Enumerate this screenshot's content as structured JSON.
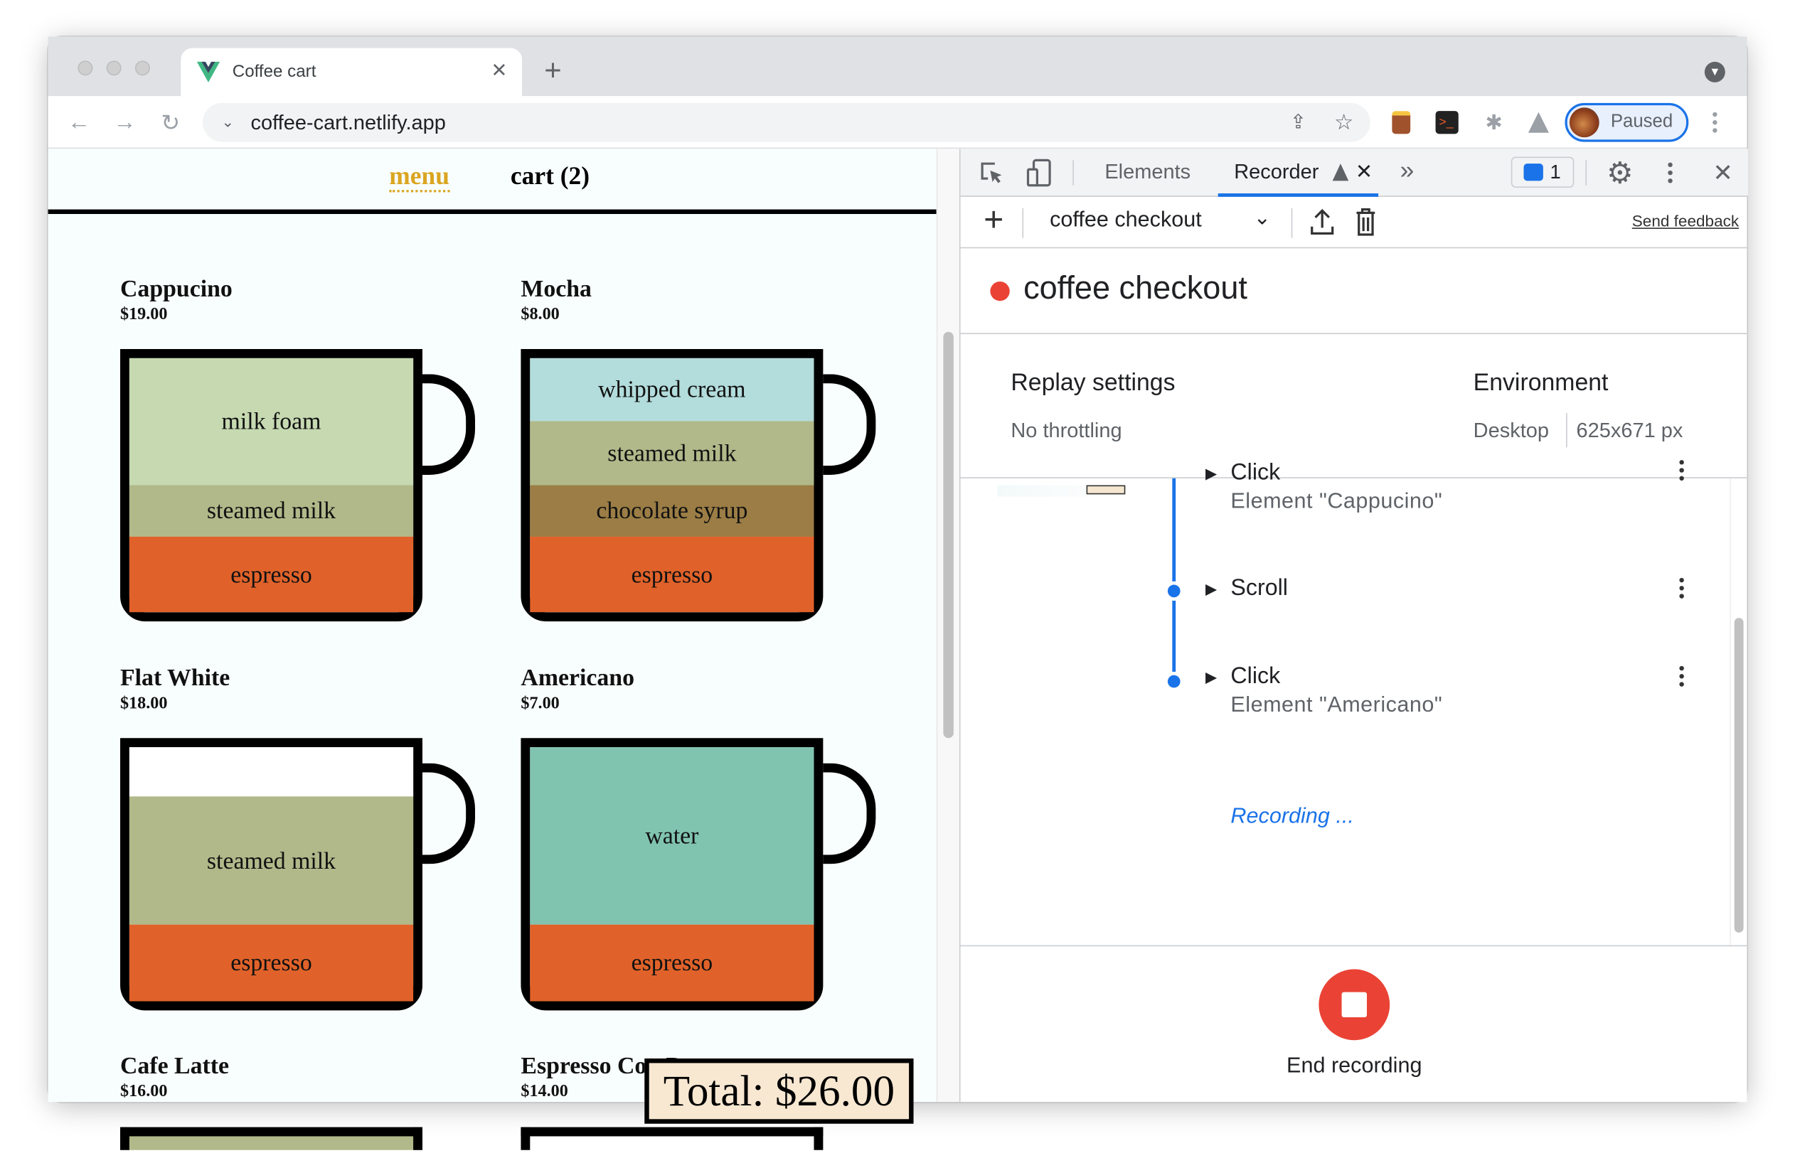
{
  "browser": {
    "tab_title": "Coffee cart",
    "url": "coffee-cart.netlify.app",
    "profile_label": "Paused"
  },
  "page": {
    "nav": {
      "menu": "menu",
      "cart": "cart (2)"
    },
    "products": [
      {
        "name": "Cappucino",
        "price": "$19.00",
        "layers": [
          {
            "label": "milk foam",
            "color": "#c6d9b1"
          },
          {
            "label": "steamed milk",
            "color": "#b1b98a"
          },
          {
            "label": "espresso",
            "color": "#e0622a"
          }
        ]
      },
      {
        "name": "Mocha",
        "price": "$8.00",
        "layers": [
          {
            "label": "whipped cream",
            "color": "#b3dcdc"
          },
          {
            "label": "steamed milk",
            "color": "#b1b98a"
          },
          {
            "label": "chocolate syrup",
            "color": "#9b7d45"
          },
          {
            "label": "espresso",
            "color": "#e0622a"
          }
        ]
      },
      {
        "name": "Flat White",
        "price": "$18.00",
        "layers": [
          {
            "label": "",
            "color": "#ffffff"
          },
          {
            "label": "steamed milk",
            "color": "#b1b98a"
          },
          {
            "label": "espresso",
            "color": "#e0622a"
          }
        ]
      },
      {
        "name": "Americano",
        "price": "$7.00",
        "layers": [
          {
            "label": "water",
            "color": "#80c4b0"
          },
          {
            "label": "espresso",
            "color": "#e0622a"
          }
        ]
      },
      {
        "name": "Cafe Latte",
        "price": "$16.00"
      },
      {
        "name": "Espresso Con Panna",
        "price": "$14.00"
      }
    ],
    "total": "Total: $26.00"
  },
  "devtools": {
    "tabs": {
      "elements": "Elements",
      "recorder": "Recorder"
    },
    "issues_count": "1",
    "recording_select": "coffee checkout",
    "send_feedback": "Send feedback",
    "recording_title": "coffee checkout",
    "replay_settings": {
      "heading": "Replay settings",
      "value": "No throttling"
    },
    "environment": {
      "heading": "Environment",
      "device": "Desktop",
      "size": "625x671 px"
    },
    "steps": [
      {
        "title": "Click",
        "subtitle": "Element \"Cappucino\""
      },
      {
        "title": "Scroll",
        "subtitle": ""
      },
      {
        "title": "Click",
        "subtitle": "Element \"Americano\""
      }
    ],
    "recording_status": "Recording ...",
    "end_recording": "End recording",
    "accent": "#1a73e8",
    "record_red": "#ea4335"
  }
}
